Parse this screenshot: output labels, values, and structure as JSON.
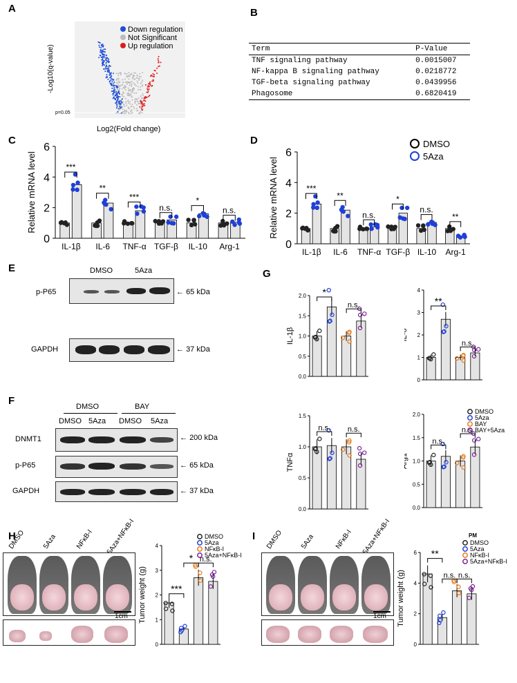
{
  "panels": {
    "A": "A",
    "B": "B",
    "C": "C",
    "D": "D",
    "E": "E",
    "F": "F",
    "G": "G",
    "H": "H",
    "I": "I"
  },
  "volcano": {
    "legend_down": "Down regulation",
    "legend_ns": "Not Significant",
    "legend_up": "Up regulation",
    "ylabel": "-Log10(q-value)",
    "xlabel": "Log2(Fold change)",
    "threshold": "p=0.05",
    "colors": {
      "down": "#1f4fd6",
      "ns": "#bbbbbb",
      "up": "#e01b1b"
    }
  },
  "table": {
    "head": [
      "Term",
      "P-Value"
    ],
    "rows": [
      [
        "TNF signaling pathway",
        "0.0015007"
      ],
      [
        "NF-kappa B signaling pathway",
        "0.0218772"
      ],
      [
        "TGF-beta signaling pathway",
        "0.0439956"
      ],
      [
        "Phagosome",
        "0.6820419"
      ]
    ]
  },
  "blotE": {
    "lanes": [
      "DMSO",
      "5Aza"
    ],
    "rows": [
      "p-P65",
      "GAPDH"
    ],
    "sizes": [
      "65 kDa",
      "37 kDa"
    ]
  },
  "blotF": {
    "groups": [
      "DMSO",
      "BAY"
    ],
    "lanes": [
      "DMSO",
      "5Aza",
      "DMSO",
      "5Aza"
    ],
    "rows": [
      "DNMT1",
      "p-P65",
      "GAPDH"
    ],
    "sizes": [
      "200 kDa",
      "65 kDa",
      "37 kDa"
    ]
  },
  "photoH": {
    "groups": [
      "DMSO",
      "5Aza",
      "NFκB-I",
      "5Aza+NFκB-I"
    ],
    "scale": "1cm"
  },
  "photoI": {
    "groups": [
      "DMSO",
      "5Aza",
      "NFκB-I",
      "5Aza+NFκB-I"
    ],
    "scale": "1cm"
  },
  "chart_data": [
    {
      "id": "C",
      "type": "bar",
      "ylabel": "Relative mRNA level",
      "ylim": [
        0,
        6
      ],
      "yticks": [
        0,
        2,
        4,
        6
      ],
      "categories": [
        "IL-1β",
        "IL-6",
        "TNF-α",
        "TGF-β",
        "IL-10",
        "Arg-1"
      ],
      "series": [
        {
          "name": "DMSO",
          "values": [
            1,
            1,
            1,
            1,
            1,
            1
          ]
        },
        {
          "name": "5Aza",
          "values": [
            3.5,
            2.3,
            1.8,
            1.2,
            1.6,
            1.05
          ]
        }
      ],
      "sig": [
        "***",
        "**",
        "***",
        "n.s.",
        "*",
        "n.s."
      ]
    },
    {
      "id": "D",
      "type": "bar",
      "ylabel": "Relative mRNA level",
      "ylim": [
        0,
        6
      ],
      "yticks": [
        0,
        2,
        4,
        6
      ],
      "categories": [
        "IL-1β",
        "IL-6",
        "TNF-α",
        "TGF-β",
        "IL-10",
        "Arg-1"
      ],
      "series": [
        {
          "name": "DMSO",
          "values": [
            1,
            1,
            1,
            1,
            1,
            1
          ]
        },
        {
          "name": "5Aza",
          "values": [
            2.6,
            2.2,
            1.1,
            2.0,
            1.4,
            0.5
          ]
        }
      ],
      "sig": [
        "***",
        "**",
        "n.s.",
        "*",
        "n.s.",
        "**"
      ],
      "legend": [
        "DMSO",
        "5Aza"
      ]
    },
    {
      "id": "G1",
      "type": "bar",
      "ylabel": "IL-1β",
      "ylim": [
        0,
        2.0
      ],
      "yticks": [
        0.0,
        0.5,
        1.0,
        1.5,
        2.0
      ],
      "categories": [
        "DMSO",
        "5Aza",
        "BAY",
        "BAY+5Aza"
      ],
      "values": [
        1.0,
        1.72,
        1.0,
        1.37
      ],
      "sig": [
        "*",
        "n.s."
      ]
    },
    {
      "id": "G2",
      "type": "bar",
      "ylabel": "IL-6",
      "ylim": [
        0,
        4
      ],
      "yticks": [
        0,
        1,
        2,
        3,
        4
      ],
      "categories": [
        "DMSO",
        "5Aza",
        "BAY",
        "BAY+5Aza"
      ],
      "values": [
        1.0,
        2.7,
        1.0,
        1.2
      ],
      "sig": [
        "**",
        "n.s."
      ]
    },
    {
      "id": "G3",
      "type": "bar",
      "ylabel": "TNFα",
      "ylim": [
        0,
        1.5
      ],
      "yticks": [
        0.0,
        0.5,
        1.0,
        1.5
      ],
      "categories": [
        "DMSO",
        "5Aza",
        "BAY",
        "BAY+5Aza"
      ],
      "values": [
        1.0,
        1.02,
        1.0,
        0.8
      ],
      "sig": [
        "n.s.",
        "n.s."
      ]
    },
    {
      "id": "G4",
      "type": "bar",
      "ylabel": "Arg1",
      "ylim": [
        0,
        2.0
      ],
      "yticks": [
        0.0,
        0.5,
        1.0,
        1.5,
        2.0
      ],
      "categories": [
        "DMSO",
        "5Aza",
        "BAY",
        "BAY+5Aza"
      ],
      "values": [
        1.0,
        1.1,
        1.0,
        1.3
      ],
      "sig": [
        "n.s.",
        "n.s."
      ],
      "legend": [
        "DMSO",
        "5Aza",
        "BAY",
        "BAY+5Aza"
      ]
    },
    {
      "id": "H",
      "type": "bar",
      "ylabel": "Tumor weight (g)",
      "ylim": [
        0,
        4
      ],
      "yticks": [
        0,
        1,
        2,
        3,
        4
      ],
      "categories": [
        "DMSO",
        "5Aza",
        "NFκB-I",
        "5Aza+NFκB-I"
      ],
      "values": [
        1.68,
        0.62,
        2.7,
        2.55
      ],
      "sig": [
        "***",
        "*",
        "n.s."
      ],
      "legend": [
        "DMSO",
        "5Aza",
        "NFκB-I",
        "5Aza+NFκB-I"
      ]
    },
    {
      "id": "I",
      "type": "bar",
      "ylabel": "Tumor weight (g)",
      "ylim": [
        0,
        6
      ],
      "yticks": [
        0,
        2,
        4,
        6
      ],
      "categories": [
        "DMSO",
        "5Aza",
        "NFκB-I",
        "5Aza+NFκB-I"
      ],
      "values": [
        4.6,
        1.75,
        3.5,
        3.3
      ],
      "sig": [
        "**",
        "n.s.",
        "n.s."
      ],
      "legend_title": "PM",
      "legend": [
        "DMSO",
        "5Aza",
        "NFκB-I",
        "5Aza+NFκB-I"
      ]
    }
  ]
}
